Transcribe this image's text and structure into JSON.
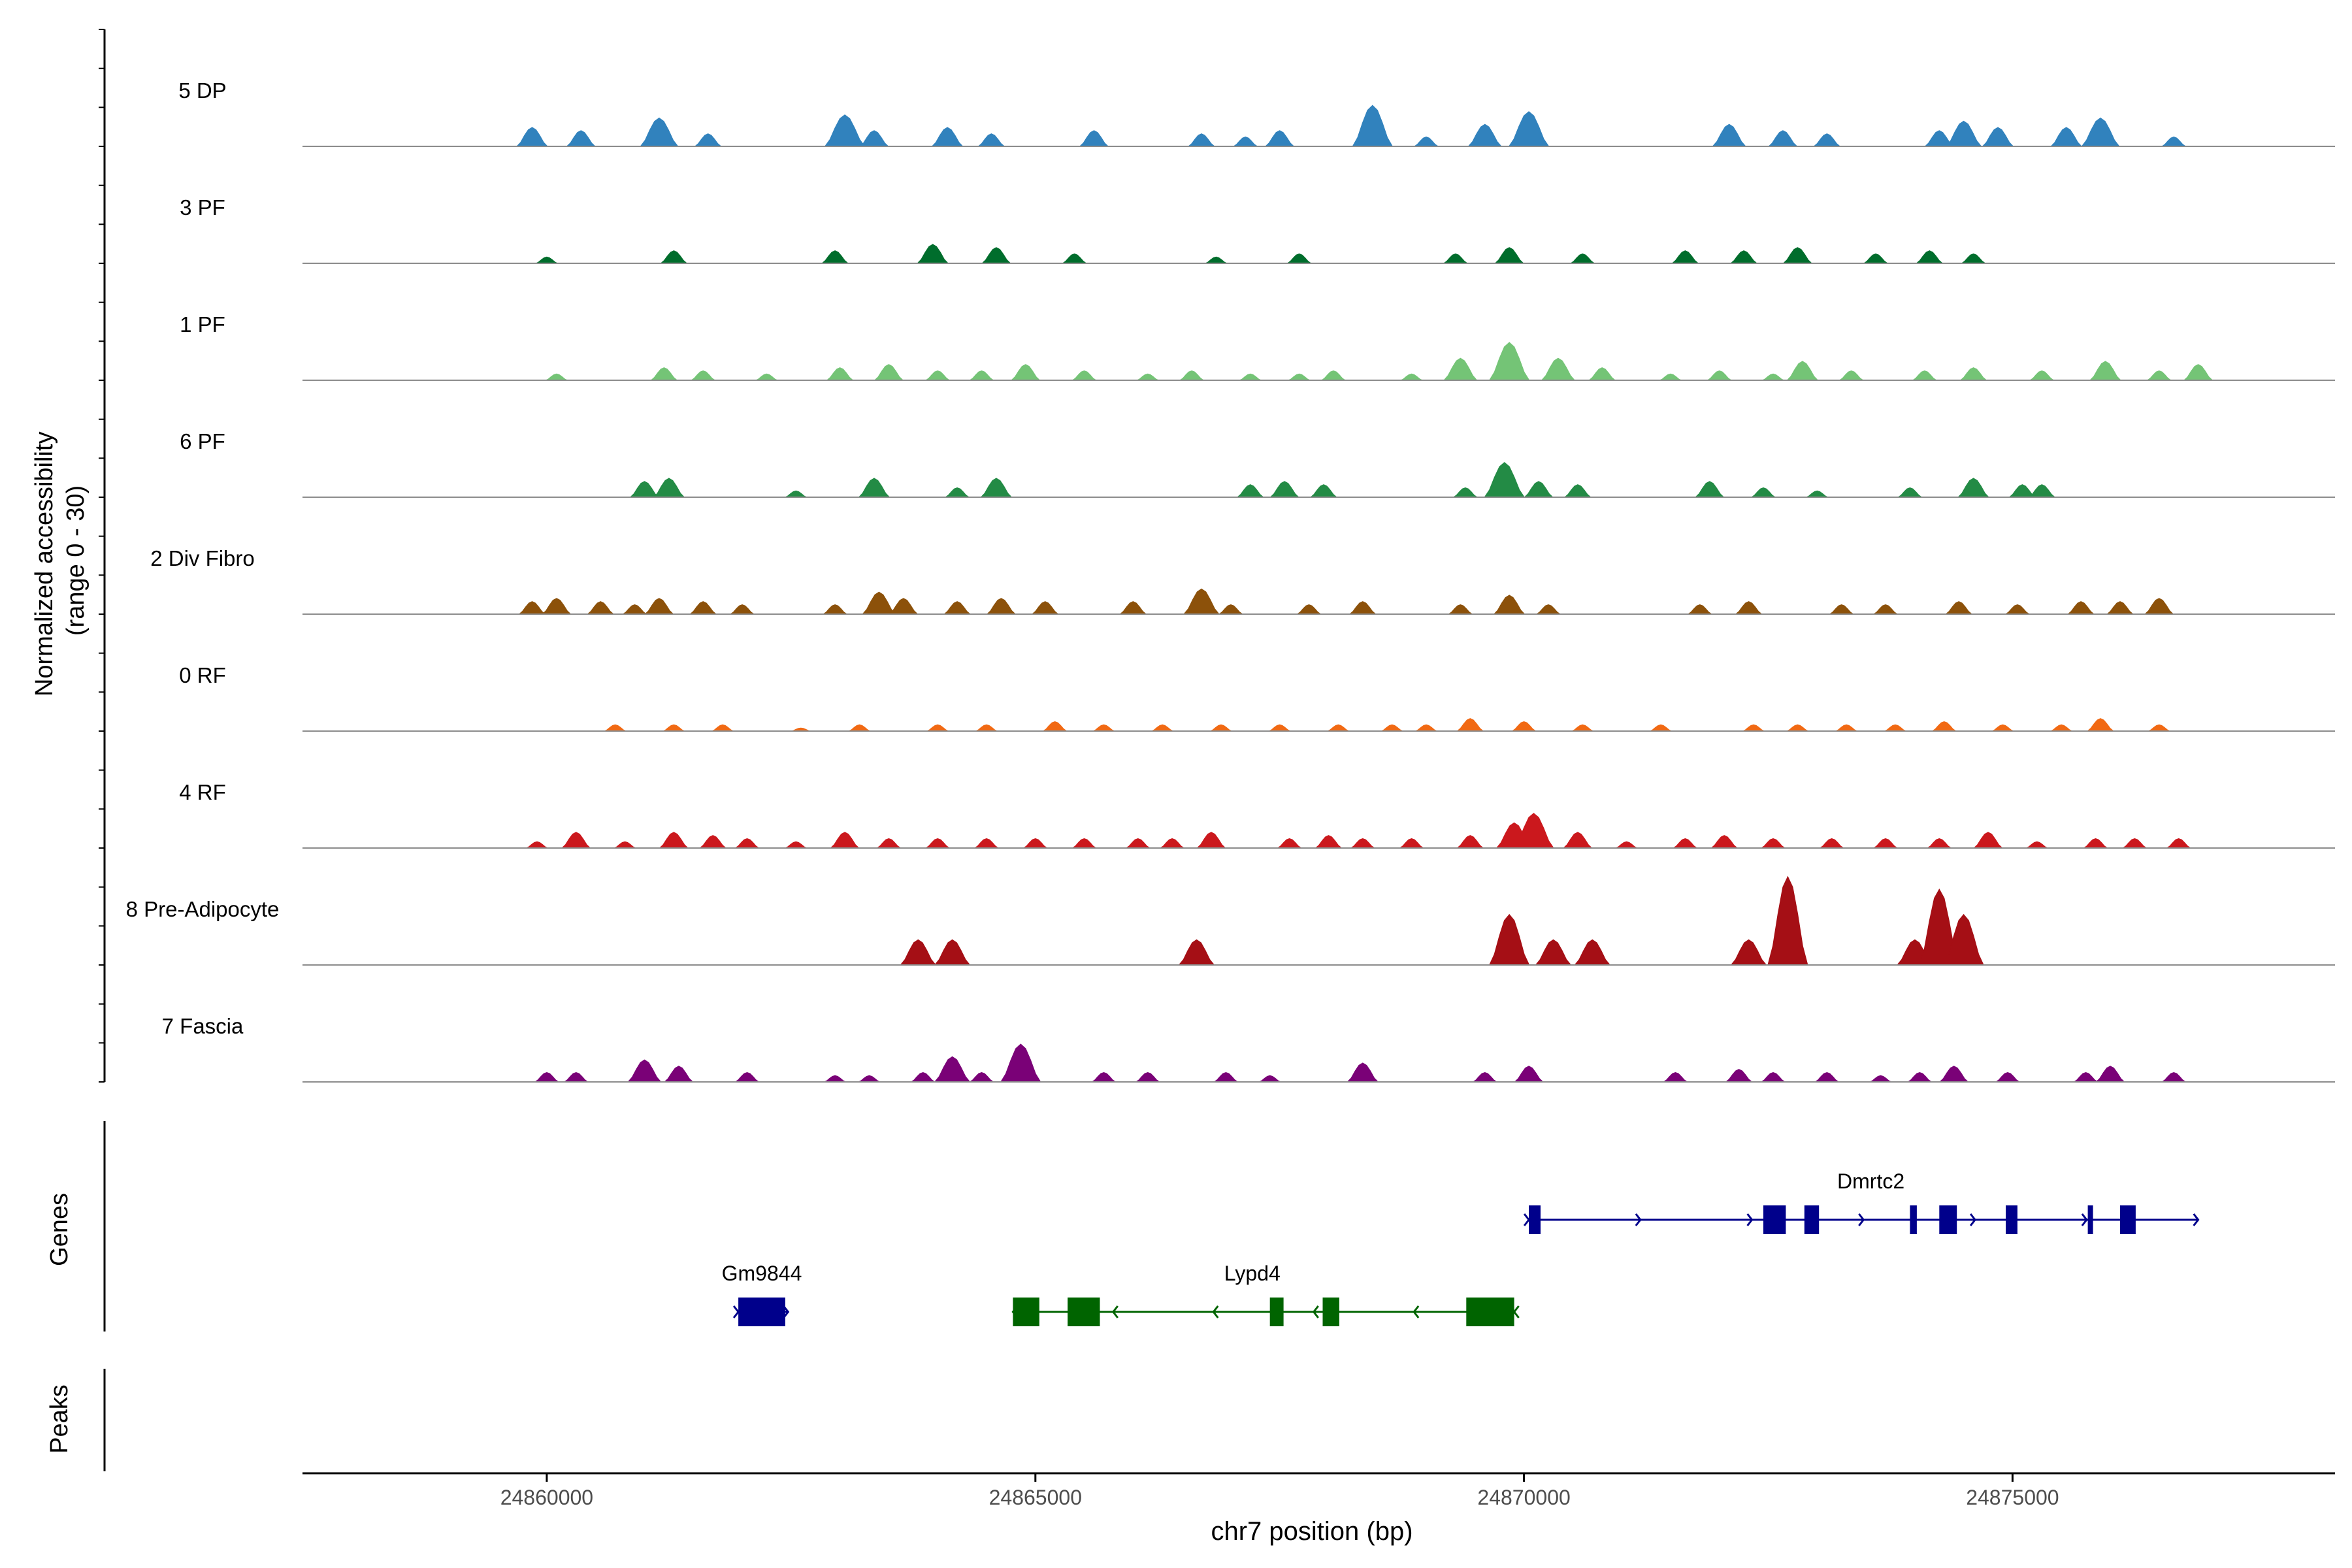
{
  "chart_data": {
    "type": "area",
    "title": "",
    "ylabel_line1": "Normalized accessibility",
    "ylabel_line2": "(range 0 - 30)",
    "xlabel": "chr7 position (bp)",
    "xlim": [
      24857500,
      24878300
    ],
    "ylim": [
      0,
      30
    ],
    "x_ticks": [
      {
        "value": 24860000,
        "label": "24860000"
      },
      {
        "value": 24865000,
        "label": "24865000"
      },
      {
        "value": 24870000,
        "label": "24870000"
      },
      {
        "value": 24875000,
        "label": "24875000"
      }
    ],
    "series": [
      {
        "name": "5 DP",
        "color": "#3182BD",
        "peaks": [
          [
            24859850,
            6
          ],
          [
            24860350,
            5
          ],
          [
            24861150,
            9
          ],
          [
            24861650,
            4
          ],
          [
            24863050,
            10
          ],
          [
            24863350,
            5
          ],
          [
            24864100,
            6
          ],
          [
            24864550,
            4
          ],
          [
            24865600,
            5
          ],
          [
            24866700,
            4
          ],
          [
            24867150,
            3
          ],
          [
            24867500,
            5
          ],
          [
            24868450,
            13
          ],
          [
            24869000,
            3
          ],
          [
            24869600,
            7
          ],
          [
            24870050,
            11
          ],
          [
            24872100,
            7
          ],
          [
            24872650,
            5
          ],
          [
            24873100,
            4
          ],
          [
            24874250,
            5
          ],
          [
            24874500,
            8
          ],
          [
            24874850,
            6
          ],
          [
            24875550,
            6
          ],
          [
            24875900,
            9
          ],
          [
            24876650,
            3
          ]
        ]
      },
      {
        "name": "3 PF",
        "color": "#006D2C",
        "peaks": [
          [
            24860000,
            2
          ],
          [
            24861300,
            4
          ],
          [
            24862950,
            4
          ],
          [
            24863950,
            6
          ],
          [
            24864600,
            5
          ],
          [
            24865400,
            3
          ],
          [
            24866850,
            2
          ],
          [
            24867700,
            3
          ],
          [
            24869300,
            3
          ],
          [
            24869850,
            5
          ],
          [
            24870600,
            3
          ],
          [
            24871650,
            4
          ],
          [
            24872250,
            4
          ],
          [
            24872800,
            5
          ],
          [
            24873600,
            3
          ],
          [
            24874150,
            4
          ],
          [
            24874600,
            3
          ]
        ]
      },
      {
        "name": "1 PF",
        "color": "#74C476",
        "peaks": [
          [
            24860100,
            2
          ],
          [
            24861200,
            4
          ],
          [
            24861600,
            3
          ],
          [
            24862250,
            2
          ],
          [
            24863000,
            4
          ],
          [
            24863500,
            5
          ],
          [
            24864000,
            3
          ],
          [
            24864450,
            3
          ],
          [
            24864900,
            5
          ],
          [
            24865500,
            3
          ],
          [
            24866150,
            2
          ],
          [
            24866600,
            3
          ],
          [
            24867200,
            2
          ],
          [
            24867700,
            2
          ],
          [
            24868050,
            3
          ],
          [
            24868850,
            2
          ],
          [
            24869350,
            7
          ],
          [
            24869850,
            12
          ],
          [
            24870350,
            7
          ],
          [
            24870800,
            4
          ],
          [
            24871500,
            2
          ],
          [
            24872000,
            3
          ],
          [
            24872550,
            2
          ],
          [
            24872850,
            6
          ],
          [
            24873350,
            3
          ],
          [
            24874100,
            3
          ],
          [
            24874600,
            4
          ],
          [
            24875300,
            3
          ],
          [
            24875950,
            6
          ],
          [
            24876500,
            3
          ],
          [
            24876900,
            5
          ]
        ]
      },
      {
        "name": "6 PF",
        "color": "#238B45",
        "peaks": [
          [
            24861000,
            5
          ],
          [
            24861250,
            6
          ],
          [
            24862550,
            2
          ],
          [
            24863350,
            6
          ],
          [
            24864200,
            3
          ],
          [
            24864600,
            6
          ],
          [
            24867200,
            4
          ],
          [
            24867550,
            5
          ],
          [
            24867950,
            4
          ],
          [
            24869400,
            3
          ],
          [
            24869800,
            11
          ],
          [
            24870150,
            5
          ],
          [
            24870550,
            4
          ],
          [
            24871900,
            5
          ],
          [
            24872450,
            3
          ],
          [
            24873000,
            2
          ],
          [
            24873950,
            3
          ],
          [
            24874600,
            6
          ],
          [
            24875100,
            4
          ],
          [
            24875300,
            4
          ]
        ]
      },
      {
        "name": "2 Div Fibro",
        "color": "#8C510A",
        "peaks": [
          [
            24859850,
            4
          ],
          [
            24860100,
            5
          ],
          [
            24860550,
            4
          ],
          [
            24860900,
            3
          ],
          [
            24861150,
            5
          ],
          [
            24861600,
            4
          ],
          [
            24862000,
            3
          ],
          [
            24862950,
            3
          ],
          [
            24863400,
            7
          ],
          [
            24863650,
            5
          ],
          [
            24864200,
            4
          ],
          [
            24864650,
            5
          ],
          [
            24865100,
            4
          ],
          [
            24866000,
            4
          ],
          [
            24866700,
            8
          ],
          [
            24867000,
            3
          ],
          [
            24867800,
            3
          ],
          [
            24868350,
            4
          ],
          [
            24869350,
            3
          ],
          [
            24869850,
            6
          ],
          [
            24870250,
            3
          ],
          [
            24871800,
            3
          ],
          [
            24872300,
            4
          ],
          [
            24873250,
            3
          ],
          [
            24873700,
            3
          ],
          [
            24874450,
            4
          ],
          [
            24875050,
            3
          ],
          [
            24875700,
            4
          ],
          [
            24876100,
            4
          ],
          [
            24876500,
            5
          ]
        ]
      },
      {
        "name": "0 RF",
        "color": "#F16913",
        "peaks": [
          [
            24860700,
            2
          ],
          [
            24861300,
            2
          ],
          [
            24861800,
            2
          ],
          [
            24862600,
            1
          ],
          [
            24863200,
            2
          ],
          [
            24864000,
            2
          ],
          [
            24864500,
            2
          ],
          [
            24865200,
            3
          ],
          [
            24865700,
            2
          ],
          [
            24866300,
            2
          ],
          [
            24866900,
            2
          ],
          [
            24867500,
            2
          ],
          [
            24868100,
            2
          ],
          [
            24868650,
            2
          ],
          [
            24869000,
            2
          ],
          [
            24869450,
            4
          ],
          [
            24870000,
            3
          ],
          [
            24870600,
            2
          ],
          [
            24871400,
            2
          ],
          [
            24872350,
            2
          ],
          [
            24872800,
            2
          ],
          [
            24873300,
            2
          ],
          [
            24873800,
            2
          ],
          [
            24874300,
            3
          ],
          [
            24874900,
            2
          ],
          [
            24875500,
            2
          ],
          [
            24875900,
            4
          ],
          [
            24876500,
            2
          ]
        ]
      },
      {
        "name": "4 RF",
        "color": "#CB181D",
        "peaks": [
          [
            24859900,
            2
          ],
          [
            24860300,
            5
          ],
          [
            24860800,
            2
          ],
          [
            24861300,
            5
          ],
          [
            24861700,
            4
          ],
          [
            24862050,
            3
          ],
          [
            24862550,
            2
          ],
          [
            24863050,
            5
          ],
          [
            24863500,
            3
          ],
          [
            24864000,
            3
          ],
          [
            24864500,
            3
          ],
          [
            24865000,
            3
          ],
          [
            24865500,
            3
          ],
          [
            24866050,
            3
          ],
          [
            24866400,
            3
          ],
          [
            24866800,
            5
          ],
          [
            24867600,
            3
          ],
          [
            24868000,
            4
          ],
          [
            24868350,
            3
          ],
          [
            24868850,
            3
          ],
          [
            24869450,
            4
          ],
          [
            24869900,
            8
          ],
          [
            24870100,
            11
          ],
          [
            24870550,
            5
          ],
          [
            24871050,
            2
          ],
          [
            24871650,
            3
          ],
          [
            24872050,
            4
          ],
          [
            24872550,
            3
          ],
          [
            24873150,
            3
          ],
          [
            24873700,
            3
          ],
          [
            24874250,
            3
          ],
          [
            24874750,
            5
          ],
          [
            24875250,
            2
          ],
          [
            24875850,
            3
          ],
          [
            24876250,
            3
          ],
          [
            24876700,
            3
          ]
        ]
      },
      {
        "name": "8 Pre-Adipocyte",
        "color": "#A50F15",
        "peaks": [
          [
            24863800,
            8
          ],
          [
            24864150,
            8
          ],
          [
            24866650,
            8
          ],
          [
            24869850,
            16
          ],
          [
            24870300,
            8
          ],
          [
            24870700,
            8
          ],
          [
            24872300,
            8
          ],
          [
            24872700,
            28
          ],
          [
            24874000,
            8
          ],
          [
            24874250,
            24
          ],
          [
            24874500,
            16
          ]
        ]
      },
      {
        "name": "7 Fascia",
        "color": "#7A0177",
        "peaks": [
          [
            24860000,
            3
          ],
          [
            24860300,
            3
          ],
          [
            24861000,
            7
          ],
          [
            24861350,
            5
          ],
          [
            24862050,
            3
          ],
          [
            24862950,
            2
          ],
          [
            24863300,
            2
          ],
          [
            24863850,
            3
          ],
          [
            24864150,
            8
          ],
          [
            24864450,
            3
          ],
          [
            24864850,
            12
          ],
          [
            24865700,
            3
          ],
          [
            24866150,
            3
          ],
          [
            24866950,
            3
          ],
          [
            24867400,
            2
          ],
          [
            24868350,
            6
          ],
          [
            24869600,
            3
          ],
          [
            24870050,
            5
          ],
          [
            24871550,
            3
          ],
          [
            24872200,
            4
          ],
          [
            24872550,
            3
          ],
          [
            24873100,
            3
          ],
          [
            24873650,
            2
          ],
          [
            24874050,
            3
          ],
          [
            24874400,
            5
          ],
          [
            24874950,
            3
          ],
          [
            24875750,
            3
          ],
          [
            24876000,
            5
          ],
          [
            24876650,
            3
          ]
        ]
      }
    ],
    "genes": [
      {
        "name": "Dmrtc2",
        "strand": "+",
        "color": "#00008B",
        "row": 0,
        "start": 24870050,
        "end": 24876900,
        "label_pos": 24873550,
        "exons": [
          [
            24870050,
            24870170
          ],
          [
            24872450,
            24872680
          ],
          [
            24872870,
            24873020
          ],
          [
            24873950,
            24874020
          ],
          [
            24874250,
            24874430
          ],
          [
            24874930,
            24875050
          ],
          [
            24875770,
            24875820
          ],
          [
            24876100,
            24876260
          ]
        ]
      },
      {
        "name": "Gm9844",
        "strand": "+",
        "color": "#00008B",
        "row": 1,
        "start": 24861960,
        "end": 24862470,
        "label_pos": 24862200,
        "exons": [
          [
            24861960,
            24862440
          ]
        ]
      },
      {
        "name": "Lypd4",
        "strand": "-",
        "color": "#006400",
        "row": 1,
        "start": 24864770,
        "end": 24869900,
        "label_pos": 24867220,
        "exons": [
          [
            24864770,
            24865040
          ],
          [
            24865330,
            24865660
          ],
          [
            24867400,
            24867540
          ],
          [
            24867940,
            24868110
          ],
          [
            24869410,
            24869900
          ]
        ]
      }
    ],
    "genes_label": "Genes",
    "peaks_label": "Peaks",
    "peaks_regions": []
  }
}
